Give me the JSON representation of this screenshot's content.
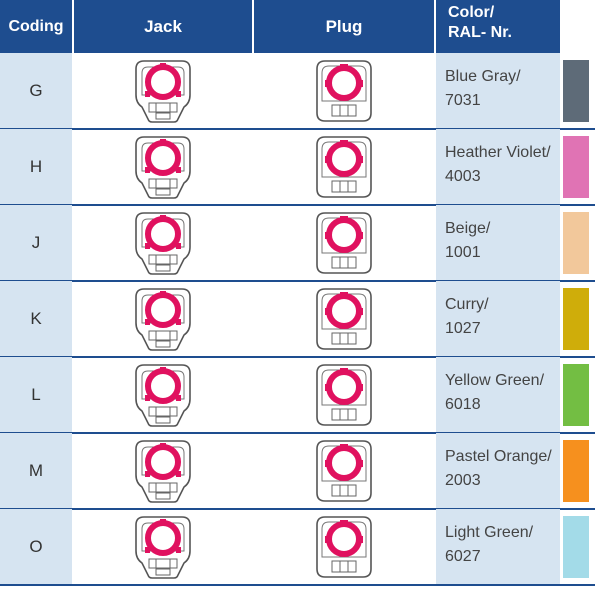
{
  "header": {
    "coding": "Coding",
    "jack": "Jack",
    "plug": "Plug",
    "color_line1": "Color/",
    "color_line2": "RAL- Nr."
  },
  "rows": [
    {
      "code": "G",
      "color_name": "Blue Gray/",
      "ral": "7031",
      "swatch": "#5e6b78"
    },
    {
      "code": "H",
      "color_name": "Heather Violet/",
      "ral": "4003",
      "swatch": "#e073b4"
    },
    {
      "code": "J",
      "color_name": "Beige/",
      "ral": "1001",
      "swatch": "#f2c89b"
    },
    {
      "code": "K",
      "color_name": "Curry/",
      "ral": "1027",
      "swatch": "#cfad0a"
    },
    {
      "code": "L",
      "color_name": "Yellow Green/",
      "ral": "6018",
      "swatch": "#73be43"
    },
    {
      "code": "M",
      "color_name": "Pastel Orange/",
      "ral": "2003",
      "swatch": "#f6901e"
    },
    {
      "code": "O",
      "color_name": "Light Green/",
      "ral": "6027",
      "swatch": "#a3dbe8"
    }
  ],
  "icon_names": {
    "jack": "jack-connector-icon",
    "plug": "plug-connector-icon"
  },
  "colors": {
    "header_bg": "#1e4d8f",
    "cell_bg": "#d6e4f1",
    "ring": "#e0115f"
  }
}
